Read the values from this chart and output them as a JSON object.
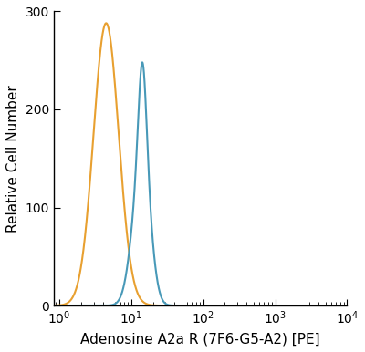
{
  "title": "",
  "xlabel": "Adenosine A2a R (7F6-G5-A2) [PE]",
  "ylabel": "Relative Cell Number",
  "xlim_log": [
    -0.08,
    4.0
  ],
  "ylim": [
    0,
    300
  ],
  "yticks": [
    0,
    100,
    200,
    300
  ],
  "orange_color": "#E8A030",
  "blue_color": "#4899B8",
  "orange_peak_log": 0.65,
  "orange_peak_height": 288,
  "orange_sigma_log": 0.175,
  "blue_peak1_log": 1.1,
  "blue_peak1_height": 220,
  "blue_sigma1_log": 0.115,
  "blue_peak2_log": 1.155,
  "blue_peak2_height": 240,
  "blue_sigma2_log": 0.055,
  "blue_peak3_log": 1.2,
  "blue_peak3_height": 160,
  "blue_sigma3_log": 0.1,
  "background_color": "#ffffff",
  "linewidth": 1.5
}
